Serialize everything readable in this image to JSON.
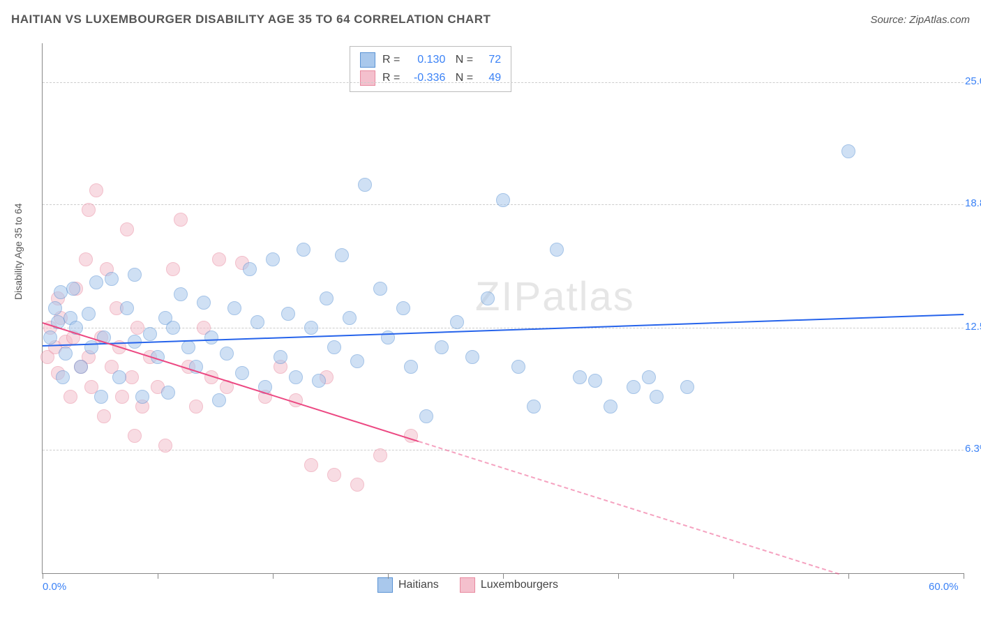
{
  "title": "HAITIAN VS LUXEMBOURGER DISABILITY AGE 35 TO 64 CORRELATION CHART",
  "source": "Source: ZipAtlas.com",
  "watermark": "ZIPatlas",
  "chart": {
    "type": "scatter",
    "ylabel": "Disability Age 35 to 64",
    "xlim": [
      0,
      60
    ],
    "ylim": [
      0,
      27
    ],
    "xticks": [
      0,
      7.5,
      15,
      22.5,
      30,
      37.5,
      45,
      52.5,
      60
    ],
    "xtick_labels_shown": {
      "0": "0.0%",
      "60": "60.0%"
    },
    "ygrid": [
      6.3,
      12.5,
      18.8,
      25.0
    ],
    "ygrid_labels": [
      "6.3%",
      "12.5%",
      "18.8%",
      "25.0%"
    ],
    "background_color": "#ffffff",
    "grid_color": "#cccccc",
    "axis_color": "#888888",
    "label_fontsize": 14,
    "tick_fontsize": 15,
    "tick_color": "#3b82f6",
    "marker_radius": 9,
    "marker_opacity": 0.55,
    "series": [
      {
        "name": "Haitians",
        "color_fill": "#a9c8ec",
        "color_stroke": "#5a93d4",
        "trend_color": "#2563eb",
        "R": "0.130",
        "N": "72",
        "trend": {
          "x0": 0,
          "y0": 11.6,
          "x1": 60,
          "y1": 13.2,
          "solid_until_x": 60
        },
        "points": [
          [
            0.5,
            12.0
          ],
          [
            0.8,
            13.5
          ],
          [
            1.0,
            12.8
          ],
          [
            1.2,
            14.3
          ],
          [
            1.5,
            11.2
          ],
          [
            1.8,
            13.0
          ],
          [
            2.0,
            14.5
          ],
          [
            2.2,
            12.5
          ],
          [
            2.5,
            10.5
          ],
          [
            3.0,
            13.2
          ],
          [
            3.2,
            11.5
          ],
          [
            3.5,
            14.8
          ],
          [
            4.0,
            12.0
          ],
          [
            4.5,
            15.0
          ],
          [
            5.0,
            10.0
          ],
          [
            5.5,
            13.5
          ],
          [
            6.0,
            11.8
          ],
          [
            6.5,
            9.0
          ],
          [
            7.0,
            12.2
          ],
          [
            7.5,
            11.0
          ],
          [
            8.0,
            13.0
          ],
          [
            8.2,
            9.2
          ],
          [
            8.5,
            12.5
          ],
          [
            9.0,
            14.2
          ],
          [
            9.5,
            11.5
          ],
          [
            10.0,
            10.5
          ],
          [
            10.5,
            13.8
          ],
          [
            11.0,
            12.0
          ],
          [
            11.5,
            8.8
          ],
          [
            12.0,
            11.2
          ],
          [
            12.5,
            13.5
          ],
          [
            13.0,
            10.2
          ],
          [
            13.5,
            15.5
          ],
          [
            14.0,
            12.8
          ],
          [
            14.5,
            9.5
          ],
          [
            15.0,
            16.0
          ],
          [
            15.5,
            11.0
          ],
          [
            16.0,
            13.2
          ],
          [
            16.5,
            10.0
          ],
          [
            17.0,
            16.5
          ],
          [
            17.5,
            12.5
          ],
          [
            18.0,
            9.8
          ],
          [
            18.5,
            14.0
          ],
          [
            19.0,
            11.5
          ],
          [
            19.5,
            16.2
          ],
          [
            20.0,
            13.0
          ],
          [
            20.5,
            10.8
          ],
          [
            21.0,
            19.8
          ],
          [
            22.0,
            14.5
          ],
          [
            22.5,
            12.0
          ],
          [
            23.5,
            13.5
          ],
          [
            24.0,
            10.5
          ],
          [
            25.0,
            8.0
          ],
          [
            26.0,
            11.5
          ],
          [
            27.0,
            12.8
          ],
          [
            28.0,
            11.0
          ],
          [
            29.0,
            14.0
          ],
          [
            30.0,
            19.0
          ],
          [
            31.0,
            10.5
          ],
          [
            32.0,
            8.5
          ],
          [
            33.5,
            16.5
          ],
          [
            35.0,
            10.0
          ],
          [
            36.0,
            9.8
          ],
          [
            37.0,
            8.5
          ],
          [
            38.5,
            9.5
          ],
          [
            39.5,
            10.0
          ],
          [
            40.0,
            9.0
          ],
          [
            42.0,
            9.5
          ],
          [
            52.5,
            21.5
          ],
          [
            6.0,
            15.2
          ],
          [
            3.8,
            9.0
          ],
          [
            1.3,
            10.0
          ]
        ]
      },
      {
        "name": "Luxembourgers",
        "color_fill": "#f4c0cd",
        "color_stroke": "#e8899f",
        "trend_color": "#ec4882",
        "R": "-0.336",
        "N": "49",
        "trend": {
          "x0": 0,
          "y0": 12.8,
          "x1": 60,
          "y1": -2.0,
          "solid_until_x": 24.5
        },
        "points": [
          [
            0.3,
            11.0
          ],
          [
            0.5,
            12.5
          ],
          [
            0.8,
            11.5
          ],
          [
            1.0,
            10.2
          ],
          [
            1.2,
            13.0
          ],
          [
            1.5,
            11.8
          ],
          [
            1.8,
            9.0
          ],
          [
            2.0,
            12.0
          ],
          [
            2.2,
            14.5
          ],
          [
            2.5,
            10.5
          ],
          [
            2.8,
            16.0
          ],
          [
            3.0,
            11.0
          ],
          [
            3.2,
            9.5
          ],
          [
            3.5,
            19.5
          ],
          [
            3.8,
            12.0
          ],
          [
            4.0,
            8.0
          ],
          [
            4.2,
            15.5
          ],
          [
            4.5,
            10.5
          ],
          [
            4.8,
            13.5
          ],
          [
            5.0,
            11.5
          ],
          [
            5.2,
            9.0
          ],
          [
            5.5,
            17.5
          ],
          [
            5.8,
            10.0
          ],
          [
            6.0,
            7.0
          ],
          [
            6.2,
            12.5
          ],
          [
            6.5,
            8.5
          ],
          [
            7.0,
            11.0
          ],
          [
            7.5,
            9.5
          ],
          [
            8.0,
            6.5
          ],
          [
            8.5,
            15.5
          ],
          [
            9.0,
            18.0
          ],
          [
            9.5,
            10.5
          ],
          [
            10.0,
            8.5
          ],
          [
            10.5,
            12.5
          ],
          [
            11.0,
            10.0
          ],
          [
            11.5,
            16.0
          ],
          [
            12.0,
            9.5
          ],
          [
            13.0,
            15.8
          ],
          [
            14.5,
            9.0
          ],
          [
            15.5,
            10.5
          ],
          [
            16.5,
            8.8
          ],
          [
            17.5,
            5.5
          ],
          [
            18.5,
            10.0
          ],
          [
            19.0,
            5.0
          ],
          [
            20.5,
            4.5
          ],
          [
            22.0,
            6.0
          ],
          [
            24.0,
            7.0
          ],
          [
            3.0,
            18.5
          ],
          [
            1.0,
            14.0
          ]
        ]
      }
    ]
  },
  "legend": {
    "items": [
      "Haitians",
      "Luxembourgers"
    ]
  }
}
